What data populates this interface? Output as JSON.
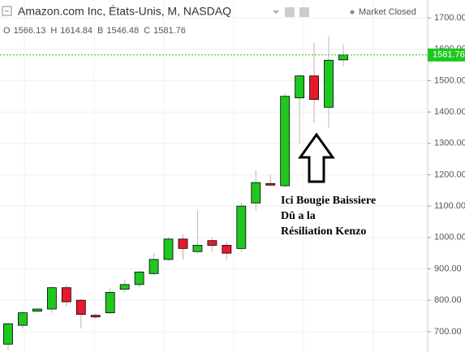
{
  "chart_data": {
    "type": "candlestick",
    "title": "Amazon.com Inc, États-Unis, M, NASDAQ",
    "status": "Market Closed",
    "ohlc_labels": [
      "O",
      "H",
      "B",
      "C"
    ],
    "categories": [
      null,
      null,
      null,
      null,
      null,
      null,
      null,
      null,
      null,
      null,
      null,
      null,
      null,
      null,
      null,
      null,
      null,
      null,
      null,
      null,
      null,
      null,
      null,
      null
    ],
    "open": [
      660,
      720,
      765,
      772,
      840,
      800,
      752,
      760,
      835,
      850,
      885,
      930,
      995,
      955,
      990,
      975,
      965,
      1110,
      1172,
      1165,
      1445,
      1515,
      1415,
      1566.13
    ],
    "high": [
      730,
      765,
      775,
      845,
      850,
      805,
      758,
      840,
      865,
      895,
      950,
      1000,
      1010,
      1085,
      1000,
      985,
      1110,
      1215,
      1200,
      1460,
      1520,
      1620,
      1640,
      1614.84
    ],
    "low": [
      640,
      710,
      760,
      760,
      780,
      710,
      740,
      755,
      825,
      840,
      880,
      925,
      930,
      950,
      955,
      930,
      955,
      1085,
      1165,
      1160,
      1300,
      1365,
      1350,
      1546.48
    ],
    "close": [
      725,
      760,
      772,
      840,
      795,
      755,
      748,
      825,
      850,
      890,
      930,
      995,
      965,
      975,
      975,
      950,
      1100,
      1175,
      1168,
      1450,
      1515,
      1440,
      1565,
      1581.76
    ],
    "up_color": "#1ec81e",
    "down_color": "#e8192c",
    "ylim": [
      635,
      1757
    ],
    "yticks": [
      {
        "value": 700,
        "label": "700.00"
      },
      {
        "value": 800,
        "label": "800.00"
      },
      {
        "value": 900,
        "label": "900.00"
      },
      {
        "value": 1000,
        "label": "1000.00"
      },
      {
        "value": 1100,
        "label": "1100.00"
      },
      {
        "value": 1200,
        "label": "1200.00"
      },
      {
        "value": 1300,
        "label": "1300.00"
      },
      {
        "value": 1400,
        "label": "1400.00"
      },
      {
        "value": 1500,
        "label": "1500.00"
      },
      {
        "value": 1600,
        "label": "1600.00"
      },
      {
        "value": 1700,
        "label": "1700.00"
      }
    ],
    "grid": true,
    "last_price_line": true,
    "annotation": [
      "Ici Bougie Baissiere",
      "Dû a la",
      "Résiliation Kenzo"
    ]
  }
}
